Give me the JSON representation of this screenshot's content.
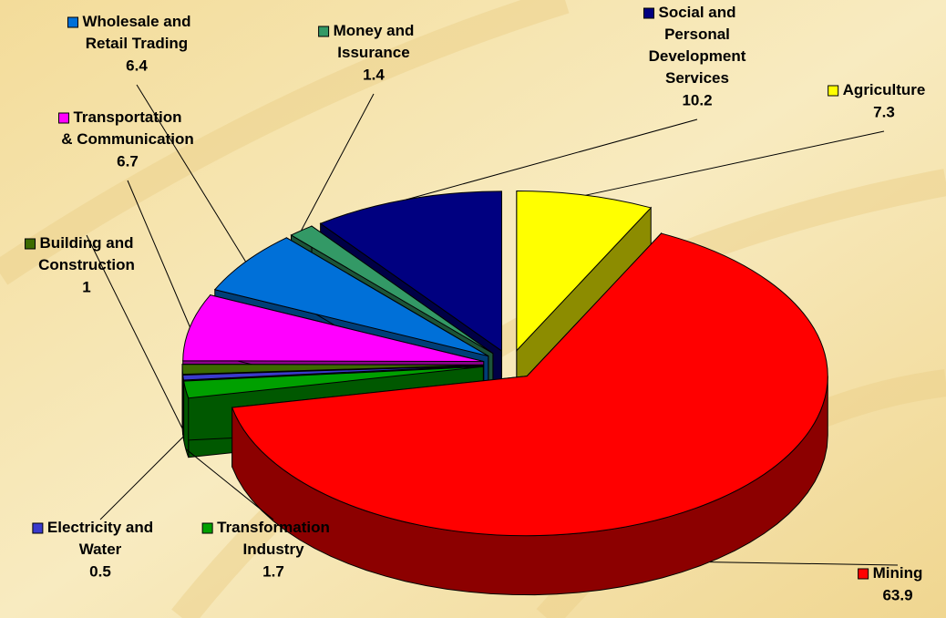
{
  "chart_data": {
    "type": "pie",
    "categories": [
      "Agriculture",
      "Mining",
      "Transformation Industry",
      "Electricity and Water",
      "Building and Construction",
      "Transportation & Communication",
      "Wholesale and Retail Trading",
      "Money and Issurance",
      "Social and Personal Development Services"
    ],
    "values": [
      7.3,
      63.9,
      1.7,
      0.5,
      1,
      6.7,
      6.4,
      1.4,
      10.2
    ],
    "colors": [
      "#ffff00",
      "#ff0000",
      "#00a000",
      "#3a3acc",
      "#3d6b00",
      "#ff00ff",
      "#0070d8",
      "#339966",
      "#000080"
    ]
  }
}
